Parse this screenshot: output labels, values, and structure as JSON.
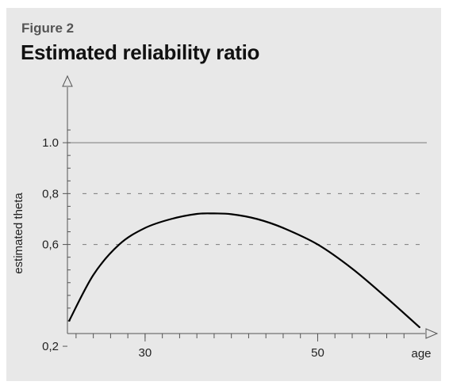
{
  "figure_label": "Figure 2",
  "chart_data": {
    "type": "line",
    "title": "Estimated reliability ratio",
    "xlabel": "age",
    "ylabel": "estimated theta",
    "x_ticks": [
      30,
      50
    ],
    "y_ticks": [
      0.2,
      0.6,
      0.8,
      1.0
    ],
    "y_tick_labels": [
      "0,2",
      "0,6",
      "0,8",
      "1.0"
    ],
    "xlim": [
      21,
      62
    ],
    "ylim": [
      0.25,
      1.1
    ],
    "reference_lines": [
      {
        "y": 1.0,
        "style": "solid"
      },
      {
        "y": 0.8,
        "style": "dashed"
      },
      {
        "y": 0.6,
        "style": "dashed"
      }
    ],
    "series": [
      {
        "x": [
          21.2,
          24,
          27,
          30,
          33,
          36,
          38,
          40,
          43,
          46,
          50,
          54,
          58,
          61.8
        ],
        "values": [
          0.3,
          0.48,
          0.6,
          0.665,
          0.7,
          0.72,
          0.722,
          0.719,
          0.7,
          0.665,
          0.6,
          0.505,
          0.39,
          0.275
        ]
      }
    ],
    "grid": false,
    "colors": {
      "line": "#000000",
      "axis": "#555555",
      "reference": "#7a7a7a",
      "background": "#e8e8e8"
    }
  }
}
